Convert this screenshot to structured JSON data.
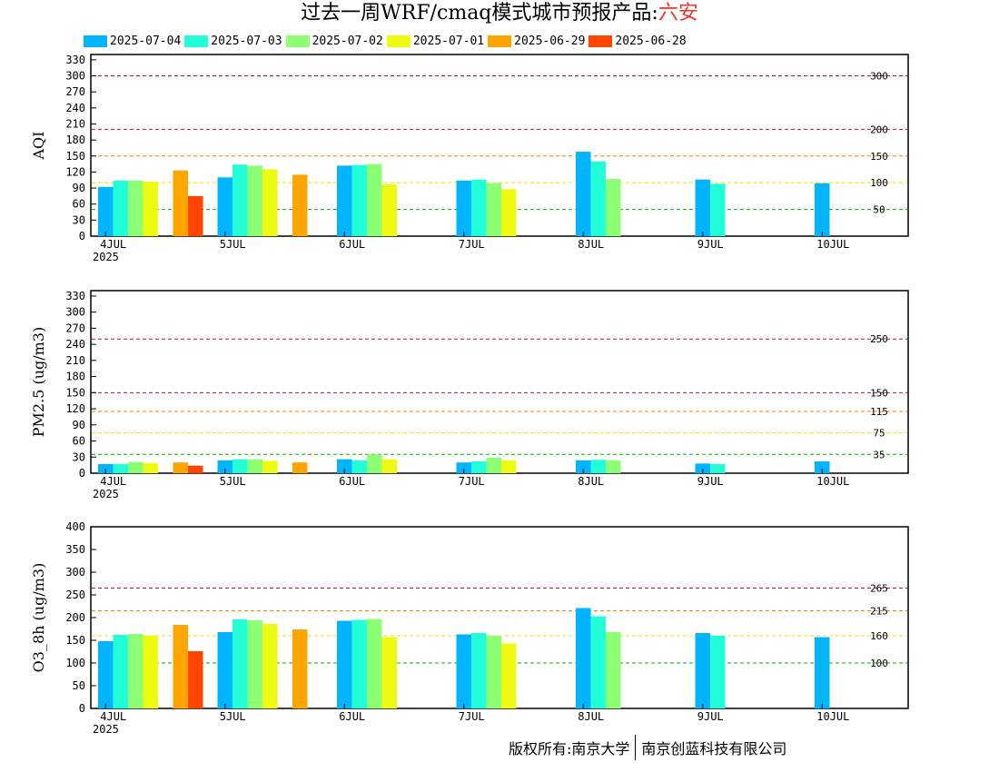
{
  "title": {
    "prefix": "过去一周WRF/cmaq模式城市预报产品:",
    "city": "六安"
  },
  "footer": {
    "left": "版权所有:南京大学",
    "right": "南京创蓝科技有限公司"
  },
  "colors": {
    "2025-07-04": "#00b4ff",
    "2025-07-03": "#22ffd8",
    "2025-07-02": "#8cff74",
    "2025-07-01": "#eefa12",
    "2025-06-29": "#ffa500",
    "2025-06-28": "#ff4500"
  },
  "chart_data": [
    {
      "type": "bar",
      "ylabel": "AQI",
      "ylim": [
        0,
        340
      ],
      "yticks": [
        0,
        30,
        60,
        90,
        120,
        150,
        180,
        210,
        240,
        270,
        300,
        330
      ],
      "categories": [
        "4JUL",
        "5JUL",
        "6JUL",
        "7JUL",
        "8JUL",
        "9JUL",
        "10JUL"
      ],
      "year_label": "2025",
      "thresholds": [
        {
          "value": 300,
          "label": "300",
          "color": "#a0125a"
        },
        {
          "value": 200,
          "label": "200",
          "color": "#c8102e"
        },
        {
          "value": 150,
          "label": "150",
          "color": "#f08000"
        },
        {
          "value": 100,
          "label": "100",
          "color": "#f0e000"
        },
        {
          "value": 50,
          "label": "50",
          "color": "#00b000"
        }
      ],
      "series": [
        {
          "name": "2025-07-04",
          "values": [
            92,
            110,
            132,
            104,
            158,
            106,
            99
          ]
        },
        {
          "name": "2025-07-03",
          "values": [
            104,
            134,
            133,
            106,
            140,
            98,
            null
          ]
        },
        {
          "name": "2025-07-02",
          "values": [
            104,
            132,
            135,
            99,
            107,
            null,
            null
          ]
        },
        {
          "name": "2025-07-01",
          "values": [
            102,
            125,
            97,
            88,
            null,
            null,
            null
          ]
        },
        {
          "name": "2025-06-29",
          "values": [
            123,
            115,
            null,
            null,
            null,
            null,
            null
          ]
        },
        {
          "name": "2025-06-28",
          "values": [
            75,
            null,
            null,
            null,
            null,
            null,
            null
          ]
        }
      ]
    },
    {
      "type": "bar",
      "ylabel": "PM2.5 (ug/m3)",
      "ylim": [
        0,
        340
      ],
      "yticks": [
        0,
        30,
        60,
        90,
        120,
        150,
        180,
        210,
        240,
        270,
        300,
        330
      ],
      "categories": [
        "4JUL",
        "5JUL",
        "6JUL",
        "7JUL",
        "8JUL",
        "9JUL",
        "10JUL"
      ],
      "year_label": "2025",
      "thresholds": [
        {
          "value": 250,
          "label": "250",
          "color": "#a0125a"
        },
        {
          "value": 150,
          "label": "150",
          "color": "#c8102e"
        },
        {
          "value": 115,
          "label": "115",
          "color": "#f08000"
        },
        {
          "value": 75,
          "label": "75",
          "color": "#f0e000"
        },
        {
          "value": 35,
          "label": "35",
          "color": "#00b000"
        }
      ],
      "series": [
        {
          "name": "2025-07-04",
          "values": [
            17,
            24,
            26,
            20,
            24,
            18,
            22
          ]
        },
        {
          "name": "2025-07-03",
          "values": [
            17,
            26,
            24,
            22,
            25,
            17,
            null
          ]
        },
        {
          "name": "2025-07-02",
          "values": [
            21,
            26,
            35,
            29,
            24,
            null,
            null
          ]
        },
        {
          "name": "2025-07-01",
          "values": [
            19,
            23,
            26,
            24,
            null,
            null,
            null
          ]
        },
        {
          "name": "2025-06-29",
          "values": [
            20,
            20,
            null,
            null,
            null,
            null,
            null
          ]
        },
        {
          "name": "2025-06-28",
          "values": [
            14,
            null,
            null,
            null,
            null,
            null,
            null
          ]
        }
      ]
    },
    {
      "type": "bar",
      "ylabel": "O3_8h (ug/m3)",
      "ylim": [
        0,
        400
      ],
      "yticks": [
        0,
        50,
        100,
        150,
        200,
        250,
        300,
        350,
        400
      ],
      "categories": [
        "4JUL",
        "5JUL",
        "6JUL",
        "7JUL",
        "8JUL",
        "9JUL",
        "10JUL"
      ],
      "year_label": "2025",
      "thresholds": [
        {
          "value": 265,
          "label": "265",
          "color": "#c8102e"
        },
        {
          "value": 215,
          "label": "215",
          "color": "#f08000"
        },
        {
          "value": 160,
          "label": "160",
          "color": "#f0e000"
        },
        {
          "value": 100,
          "label": "100",
          "color": "#00b000"
        }
      ],
      "series": [
        {
          "name": "2025-07-04",
          "values": [
            148,
            168,
            193,
            163,
            221,
            166,
            157
          ]
        },
        {
          "name": "2025-07-03",
          "values": [
            162,
            196,
            195,
            166,
            203,
            160,
            null
          ]
        },
        {
          "name": "2025-07-02",
          "values": [
            164,
            194,
            197,
            160,
            168,
            null,
            null
          ]
        },
        {
          "name": "2025-07-01",
          "values": [
            161,
            186,
            157,
            143,
            null,
            null,
            null
          ]
        },
        {
          "name": "2025-06-29",
          "values": [
            184,
            174,
            null,
            null,
            null,
            null,
            null
          ]
        },
        {
          "name": "2025-06-28",
          "values": [
            126,
            null,
            null,
            null,
            null,
            null,
            null
          ]
        }
      ]
    }
  ]
}
